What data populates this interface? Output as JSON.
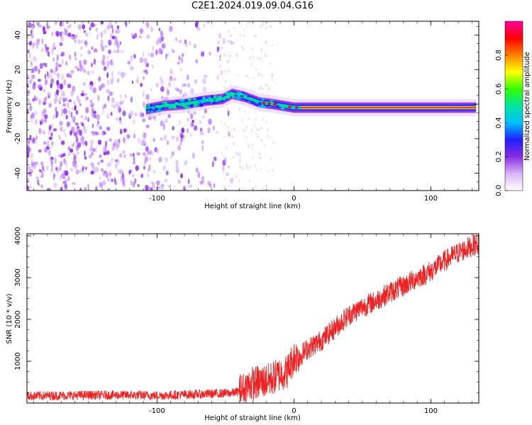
{
  "title": "C2E1.2024.019.09.04.G16",
  "chart_data": [
    {
      "type": "heatmap",
      "xlabel": "Height of straight line (km)",
      "ylabel": "Frequency (Hz)",
      "xlim": [
        -195,
        135
      ],
      "ylim": [
        -50,
        48
      ],
      "xticks": [
        -100,
        0,
        100
      ],
      "yticks": [
        -40,
        -20,
        0,
        20,
        40
      ],
      "ridge": {
        "description_points": [
          {
            "x": -108,
            "y": -3
          },
          {
            "x": -95,
            "y": -1
          },
          {
            "x": -80,
            "y": 0
          },
          {
            "x": -65,
            "y": 2
          },
          {
            "x": -52,
            "y": 3
          },
          {
            "x": -45,
            "y": 6
          },
          {
            "x": -35,
            "y": 4
          },
          {
            "x": -25,
            "y": 1
          },
          {
            "x": -15,
            "y": 0
          },
          {
            "x": 0,
            "y": -2
          },
          {
            "x": 50,
            "y": -2
          },
          {
            "x": 133,
            "y": -2
          }
        ]
      },
      "colorbar": {
        "label": "Normalized spectral amplitude",
        "range": [
          0.0,
          1.0
        ],
        "ticks": [
          0.0,
          0.2,
          0.4,
          0.6,
          0.8
        ],
        "tick_labels": [
          "0.0",
          "0.2",
          "0.4",
          "0.6",
          "0.8"
        ],
        "colors": [
          "#ffffff",
          "#d8b4f8",
          "#8a2be2",
          "#1f1fff",
          "#00bfff",
          "#00e5a0",
          "#32ff00",
          "#ffff00",
          "#ff8000",
          "#ff0000",
          "#ff00a0"
        ]
      }
    },
    {
      "type": "line",
      "xlabel": "Height of straight line (km)",
      "ylabel": "SNR (10 * v/v)",
      "xlim": [
        -195,
        135
      ],
      "ylim": [
        0,
        4050
      ],
      "xticks": [
        -100,
        0,
        100
      ],
      "yticks": [
        1000,
        2000,
        3000,
        4000
      ],
      "color": "#ee2222",
      "series": [
        {
          "x": [
            -195,
            -170,
            -150,
            -120,
            -100,
            -80,
            -60,
            -45,
            -38,
            -32,
            -25,
            -18,
            -10,
            -5,
            0,
            5,
            10,
            20,
            30,
            40,
            50,
            60,
            70,
            80,
            90,
            100,
            110,
            120,
            133
          ],
          "values": [
            170,
            180,
            190,
            190,
            180,
            200,
            220,
            240,
            300,
            450,
            500,
            550,
            700,
            750,
            1100,
            1150,
            1300,
            1500,
            1800,
            2100,
            2300,
            2450,
            2650,
            2800,
            3000,
            3150,
            3400,
            3600,
            3800
          ]
        }
      ]
    }
  ]
}
